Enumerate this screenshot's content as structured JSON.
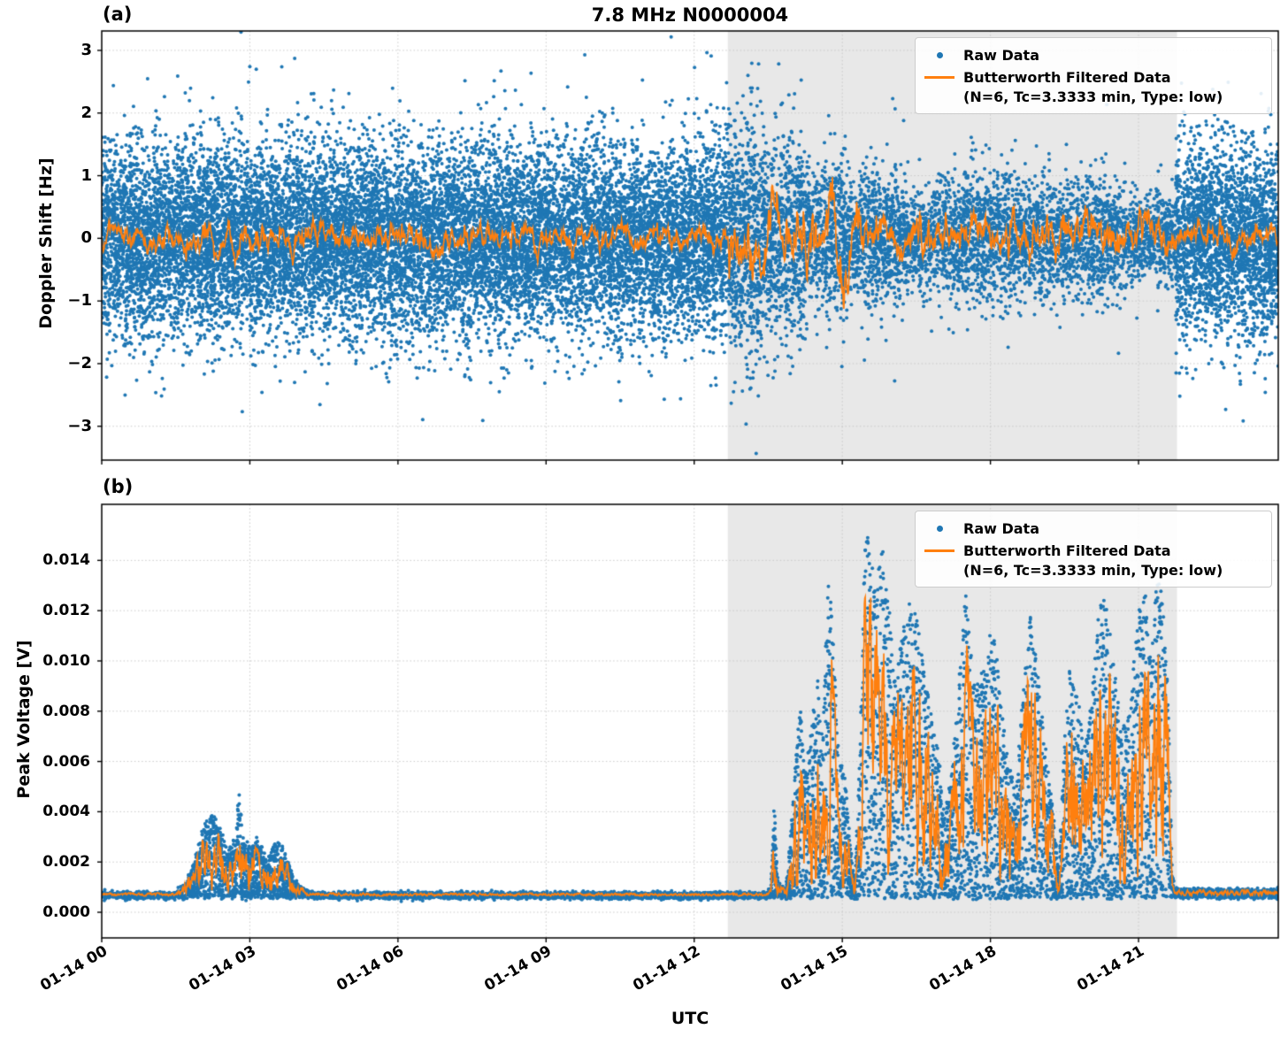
{
  "title": "7.8 MHz N0000004",
  "xlabel": "UTC",
  "xtick_labels": [
    "01-14 00",
    "01-14 03",
    "01-14 06",
    "01-14 09",
    "01-14 12",
    "01-14 15",
    "01-14 18",
    "01-14 21"
  ],
  "panel_a": {
    "label": "(a)",
    "ylabel": "Doppler Shift [Hz]",
    "ytick_labels": [
      "3",
      "2",
      "1",
      "0",
      "−1",
      "−2",
      "−3"
    ]
  },
  "panel_b": {
    "label": "(b)",
    "ylabel": "Peak Voltage [V]",
    "ytick_labels": [
      "0.014",
      "0.012",
      "0.010",
      "0.008",
      "0.006",
      "0.004",
      "0.002",
      "0.000"
    ]
  },
  "legend": {
    "raw_label": "Raw Data",
    "filtered_label": "Butterworth Filtered Data",
    "filtered_params": "(N=6, Tc=3.3333 min, Type: low)"
  },
  "colors": {
    "raw": "#1f77b4",
    "filtered": "#ff7f0e",
    "shade": "#e8e8e8",
    "grid": "#c9c9c9",
    "spine": "#000000"
  },
  "chart_data": [
    {
      "id": "doppler_shift",
      "type": "scatter",
      "title": "7.8 MHz N0000004",
      "xlabel": "UTC",
      "ylabel": "Doppler Shift [Hz]",
      "x_unit": "hours after 01-14 00:00 UTC",
      "x_range": [
        0,
        23.83
      ],
      "x_tick_hours": [
        0,
        3,
        6,
        9,
        12,
        15,
        18,
        21
      ],
      "x_tick_labels": [
        "01-14 00",
        "01-14 03",
        "01-14 06",
        "01-14 09",
        "01-14 12",
        "01-14 15",
        "01-14 18",
        "01-14 21"
      ],
      "ylim": [
        -3.54,
        3.31
      ],
      "y_ticks": [
        3,
        2,
        1,
        0,
        -1,
        -2,
        -3
      ],
      "grid": true,
      "legend_position": "upper right",
      "shaded_span": [
        12.68,
        21.78
      ],
      "series": [
        {
          "name": "Raw Data",
          "type": "scatter",
          "color": "#1f77b4",
          "marker_radius_px": 2,
          "seed": 42,
          "points_per_hour": 1250,
          "outlier_prob": 0.012,
          "outlier_scale": 1.7,
          "noise_segments": [
            {
              "t0": 0,
              "t1": 12.68,
              "sigma": 0.75,
              "rate": 1
            },
            {
              "t0": 12.68,
              "t1": 13.05,
              "sigma": 0.85,
              "rate": 0.9
            },
            {
              "t0": 13.05,
              "t1": 13.35,
              "sigma": 1.05,
              "rate": 0.8
            },
            {
              "t0": 13.35,
              "t1": 14.25,
              "sigma": 0.8,
              "rate": 0.7
            },
            {
              "t0": 14.25,
              "t1": 14.6,
              "sigma": 0.55,
              "rate": 0.55
            },
            {
              "t0": 14.6,
              "t1": 15.1,
              "sigma": 0.65,
              "rate": 0.6
            },
            {
              "t0": 15.1,
              "t1": 15.35,
              "sigma": 0.45,
              "rate": 0.5
            },
            {
              "t0": 15.35,
              "t1": 16.1,
              "sigma": 0.55,
              "rate": 0.6
            },
            {
              "t0": 16.1,
              "t1": 17.1,
              "sigma": 0.42,
              "rate": 0.5
            },
            {
              "t0": 17.1,
              "t1": 18.55,
              "sigma": 0.5,
              "rate": 0.55
            },
            {
              "t0": 18.55,
              "t1": 19.5,
              "sigma": 0.45,
              "rate": 0.5
            },
            {
              "t0": 19.5,
              "t1": 20.75,
              "sigma": 0.48,
              "rate": 0.5
            },
            {
              "t0": 20.75,
              "t1": 21.75,
              "sigma": 0.35,
              "rate": 0.45
            },
            {
              "t0": 21.75,
              "t1": 23.83,
              "sigma": 0.78,
              "rate": 1
            }
          ]
        },
        {
          "name": "Butterworth Filtered Data (N=6, Tc=3.3333 min, Type: low)",
          "type": "line",
          "color": "#ff7f0e",
          "mean": 0,
          "seed": 5,
          "step": 0.01,
          "ar": 0.86,
          "innov": 0.5,
          "amp_segments": [
            {
              "t0": 0,
              "t1": 12.7,
              "amp": 0.13
            },
            {
              "t0": 12.7,
              "t1": 13.35,
              "amp": 0.3
            },
            {
              "t0": 13.35,
              "t1": 15.3,
              "amp": 0.33
            },
            {
              "t0": 15.3,
              "t1": 21.7,
              "amp": 0.2
            },
            {
              "t0": 21.7,
              "t1": 23.83,
              "amp": 0.13
            }
          ]
        }
      ]
    },
    {
      "id": "peak_voltage",
      "type": "scatter",
      "xlabel": "UTC",
      "ylabel": "Peak Voltage [V]",
      "x_unit": "hours after 01-14 00:00 UTC",
      "x_range": [
        0,
        23.83
      ],
      "x_tick_hours": [
        0,
        3,
        6,
        9,
        12,
        15,
        18,
        21
      ],
      "x_tick_labels": [
        "01-14 00",
        "01-14 03",
        "01-14 06",
        "01-14 09",
        "01-14 12",
        "01-14 15",
        "01-14 18",
        "01-14 21"
      ],
      "ylim": [
        -0.00102,
        0.01623
      ],
      "y_ticks": [
        0.014,
        0.012,
        0.01,
        0.008,
        0.006,
        0.004,
        0.002,
        0
      ],
      "grid": true,
      "legend_position": "upper right",
      "shaded_span": [
        12.68,
        21.78
      ],
      "baseline": 0.0006,
      "baseline_noise": 5e-05,
      "envelope_points": [
        [
          0,
          0.00075
        ],
        [
          1.5,
          0.00075
        ],
        [
          1.7,
          0.0012
        ],
        [
          1.85,
          0.002
        ],
        [
          2.0,
          0.003
        ],
        [
          2.1,
          0.0036
        ],
        [
          2.25,
          0.004
        ],
        [
          2.4,
          0.0034
        ],
        [
          2.55,
          0.0024
        ],
        [
          2.7,
          0.003
        ],
        [
          2.78,
          0.0049
        ],
        [
          2.86,
          0.003
        ],
        [
          3.0,
          0.0026
        ],
        [
          3.1,
          0.0029
        ],
        [
          3.25,
          0.0026
        ],
        [
          3.35,
          0.002
        ],
        [
          3.45,
          0.0026
        ],
        [
          3.6,
          0.0028
        ],
        [
          3.75,
          0.0022
        ],
        [
          3.9,
          0.0013
        ],
        [
          4.1,
          0.0009
        ],
        [
          4.3,
          0.00075
        ],
        [
          13.45,
          0.00075
        ],
        [
          13.55,
          0.001
        ],
        [
          13.62,
          0.0044
        ],
        [
          13.7,
          0.0012
        ],
        [
          13.85,
          0.0009
        ],
        [
          13.95,
          0.003
        ],
        [
          14.05,
          0.006
        ],
        [
          14.15,
          0.0085
        ],
        [
          14.25,
          0.0055
        ],
        [
          14.35,
          0.0075
        ],
        [
          14.5,
          0.0092
        ],
        [
          14.6,
          0.007
        ],
        [
          14.72,
          0.0138
        ],
        [
          14.85,
          0.0095
        ],
        [
          14.95,
          0.006
        ],
        [
          15.05,
          0.0055
        ],
        [
          15.15,
          0.003
        ],
        [
          15.25,
          0.0012
        ],
        [
          15.35,
          0.006
        ],
        [
          15.45,
          0.0145
        ],
        [
          15.55,
          0.0152
        ],
        [
          15.7,
          0.013
        ],
        [
          15.8,
          0.0148
        ],
        [
          15.95,
          0.0125
        ],
        [
          16.05,
          0.0092
        ],
        [
          16.2,
          0.011
        ],
        [
          16.35,
          0.0125
        ],
        [
          16.5,
          0.0118
        ],
        [
          16.65,
          0.0098
        ],
        [
          16.8,
          0.008
        ],
        [
          16.95,
          0.0065
        ],
        [
          17.05,
          0.0042
        ],
        [
          17.2,
          0.0052
        ],
        [
          17.35,
          0.0088
        ],
        [
          17.5,
          0.0128
        ],
        [
          17.62,
          0.01
        ],
        [
          17.75,
          0.0092
        ],
        [
          17.9,
          0.0098
        ],
        [
          18.05,
          0.0118
        ],
        [
          18.2,
          0.0085
        ],
        [
          18.35,
          0.0062
        ],
        [
          18.5,
          0.0048
        ],
        [
          18.65,
          0.0085
        ],
        [
          18.8,
          0.0118
        ],
        [
          18.95,
          0.0098
        ],
        [
          19.1,
          0.0068
        ],
        [
          19.25,
          0.0048
        ],
        [
          19.38,
          0.0015
        ],
        [
          19.5,
          0.007
        ],
        [
          19.62,
          0.0104
        ],
        [
          19.75,
          0.0088
        ],
        [
          19.9,
          0.0068
        ],
        [
          20.05,
          0.0085
        ],
        [
          20.2,
          0.0122
        ],
        [
          20.35,
          0.0128
        ],
        [
          20.5,
          0.01
        ],
        [
          20.65,
          0.0072
        ],
        [
          20.8,
          0.0078
        ],
        [
          20.95,
          0.0108
        ],
        [
          21.1,
          0.0138
        ],
        [
          21.25,
          0.0098
        ],
        [
          21.4,
          0.0142
        ],
        [
          21.5,
          0.012
        ],
        [
          21.6,
          0.009
        ],
        [
          21.68,
          0.0015
        ],
        [
          21.75,
          0.0009
        ],
        [
          23.83,
          0.0009
        ]
      ],
      "series": [
        {
          "name": "Raw Data",
          "type": "scatter",
          "color": "#1f77b4",
          "marker_radius_px": 2,
          "seed": 7,
          "step": 0.0035,
          "top_prob": 0.3,
          "exp_top": 0.55,
          "exp_main": 1.5,
          "extra_density_threshold": 0.0008
        },
        {
          "name": "Butterworth Filtered Data (N=6, Tc=3.3333 min, Type: low)",
          "type": "line",
          "color": "#ff7f0e",
          "seed": 9,
          "step": 0.008,
          "smooth": 0.75,
          "frac_base": 0.45,
          "frac_gain": 1.8,
          "frac_min": 0.07,
          "frac_max": 0.85
        }
      ]
    }
  ]
}
